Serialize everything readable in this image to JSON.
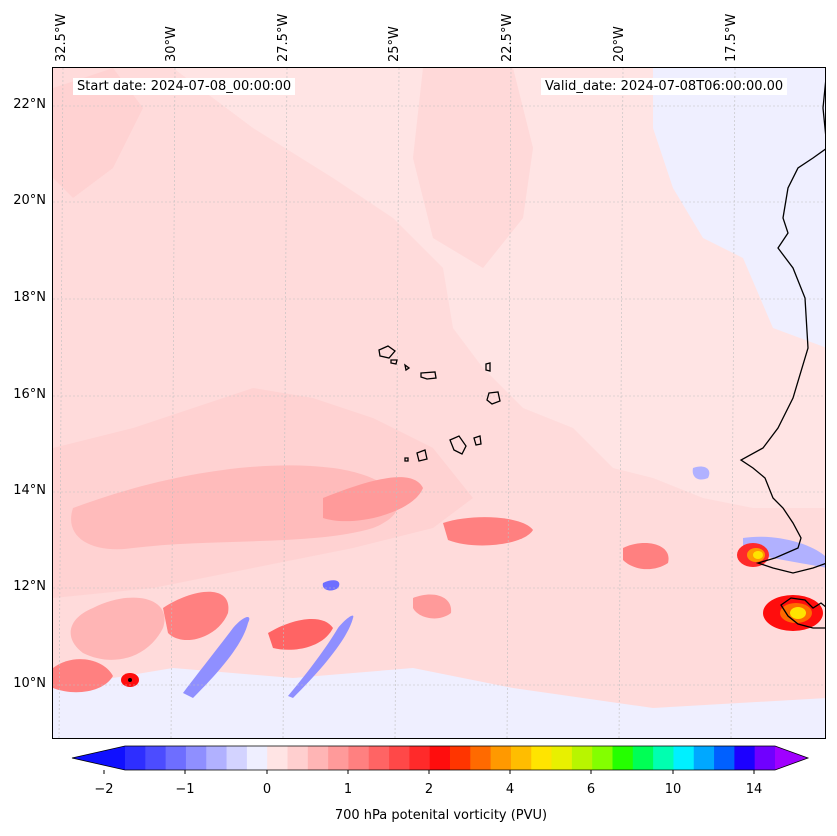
{
  "header": {
    "start_date": "Start date: 2024-07-08_00:00:00",
    "valid_date": "Valid_date: 2024-07-08T06:00:00.00"
  },
  "axes": {
    "lon_labels": [
      "32.5°W",
      "30°W",
      "27.5°W",
      "25°W",
      "22.5°W",
      "20°W",
      "17.5°W"
    ],
    "lat_labels": [
      "22°N",
      "20°N",
      "18°N",
      "16°N",
      "14°N",
      "12°N",
      "10°N"
    ]
  },
  "colorbar": {
    "label": "700 hPa potenital vorticity (PVU)",
    "ticks": [
      "−2",
      "−1",
      "0",
      "1",
      "2",
      "4",
      "6",
      "10",
      "14"
    ],
    "colors": [
      "#1010ff",
      "#2e2eff",
      "#4c4cff",
      "#6e6eff",
      "#8f8fff",
      "#b1b1ff",
      "#d3d3ff",
      "#efefff",
      "#ffe4e4",
      "#ffcfcf",
      "#ffb5b5",
      "#ff9a9a",
      "#ff8080",
      "#ff6464",
      "#ff4848",
      "#ff2a2a",
      "#ff0d0d",
      "#ff3500",
      "#ff6a00",
      "#ff9900",
      "#ffbd00",
      "#ffe400",
      "#e8f000",
      "#b8f500",
      "#83ff00",
      "#25ff00",
      "#00ff55",
      "#00ffb0",
      "#00f0ff",
      "#00a8ff",
      "#0060ff",
      "#1c00ff",
      "#7000ff",
      "#a000ff"
    ]
  },
  "map": {
    "background": "#ffe4e4",
    "coastline_color": "#000000"
  }
}
